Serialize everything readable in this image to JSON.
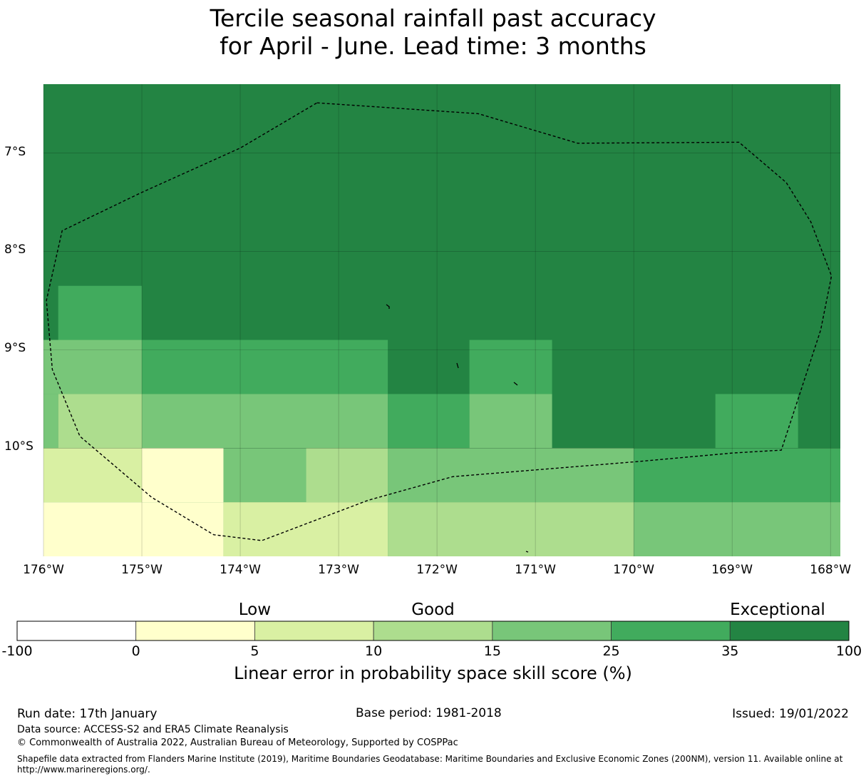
{
  "title": {
    "line1": "Tercile seasonal rainfall past accuracy",
    "line2": "for April - June. Lead time: 3 months"
  },
  "colors": {
    "c_neg": "#ffffff",
    "c_0_5": "#ffffcc",
    "c_5_10": "#d9f0a3",
    "c_10_15": "#addd8e",
    "c_15_25": "#78c679",
    "c_25_35": "#41ab5d",
    "c_35_100": "#238443"
  },
  "map": {
    "lon_range": [
      -176,
      -167.9
    ],
    "lat_range": [
      -6.3,
      -11.1
    ],
    "lon_ticks": [
      {
        "value": -176,
        "label": "176°W"
      },
      {
        "value": -175,
        "label": "175°W"
      },
      {
        "value": -174,
        "label": "174°W"
      },
      {
        "value": -173,
        "label": "173°W"
      },
      {
        "value": -172,
        "label": "172°W"
      },
      {
        "value": -171,
        "label": "171°W"
      },
      {
        "value": -170,
        "label": "170°W"
      },
      {
        "value": -169,
        "label": "169°W"
      },
      {
        "value": -168,
        "label": "168°W"
      }
    ],
    "lat_ticks": [
      {
        "value": -7,
        "label": "7°S"
      },
      {
        "value": -8,
        "label": "8°S"
      },
      {
        "value": -9,
        "label": "9°S"
      },
      {
        "value": -10,
        "label": "10°S"
      }
    ],
    "base_class": "c_35_100",
    "cells": [
      {
        "lon": [
          -175.85,
          -175.0
        ],
        "lat": [
          -8.35,
          -8.9
        ],
        "c": "c_25_35"
      },
      {
        "lon": [
          -176.0,
          -175.0
        ],
        "lat": [
          -8.9,
          -9.45
        ],
        "c": "c_15_25"
      },
      {
        "lon": [
          -175.0,
          -172.5
        ],
        "lat": [
          -8.9,
          -9.45
        ],
        "c": "c_25_35"
      },
      {
        "lon": [
          -171.67,
          -170.83
        ],
        "lat": [
          -8.9,
          -9.45
        ],
        "c": "c_25_35"
      },
      {
        "lon": [
          -176.0,
          -175.85
        ],
        "lat": [
          -9.45,
          -10.0
        ],
        "c": "c_15_25"
      },
      {
        "lon": [
          -175.85,
          -175.0
        ],
        "lat": [
          -9.45,
          -10.0
        ],
        "c": "c_10_15"
      },
      {
        "lon": [
          -175.0,
          -172.5
        ],
        "lat": [
          -9.45,
          -10.0
        ],
        "c": "c_15_25"
      },
      {
        "lon": [
          -172.5,
          -171.67
        ],
        "lat": [
          -9.45,
          -10.0
        ],
        "c": "c_25_35"
      },
      {
        "lon": [
          -171.67,
          -170.83
        ],
        "lat": [
          -9.45,
          -10.0
        ],
        "c": "c_15_25"
      },
      {
        "lon": [
          -169.17,
          -168.33
        ],
        "lat": [
          -9.45,
          -10.0
        ],
        "c": "c_25_35"
      },
      {
        "lon": [
          -176.0,
          -175.0
        ],
        "lat": [
          -10.0,
          -10.55
        ],
        "c": "c_5_10"
      },
      {
        "lon": [
          -175.0,
          -174.17
        ],
        "lat": [
          -10.0,
          -10.55
        ],
        "c": "c_0_5"
      },
      {
        "lon": [
          -174.17,
          -173.33
        ],
        "lat": [
          -10.0,
          -10.55
        ],
        "c": "c_15_25"
      },
      {
        "lon": [
          -173.33,
          -172.5
        ],
        "lat": [
          -10.0,
          -10.55
        ],
        "c": "c_10_15"
      },
      {
        "lon": [
          -172.5,
          -170.0
        ],
        "lat": [
          -10.0,
          -10.55
        ],
        "c": "c_15_25"
      },
      {
        "lon": [
          -170.0,
          -167.9
        ],
        "lat": [
          -10.0,
          -10.55
        ],
        "c": "c_25_35"
      },
      {
        "lon": [
          -176.0,
          -174.17
        ],
        "lat": [
          -10.55,
          -11.1
        ],
        "c": "c_0_5"
      },
      {
        "lon": [
          -174.17,
          -172.5
        ],
        "lat": [
          -10.55,
          -11.1
        ],
        "c": "c_5_10"
      },
      {
        "lon": [
          -172.5,
          -170.0
        ],
        "lat": [
          -10.55,
          -11.1
        ],
        "c": "c_10_15"
      },
      {
        "lon": [
          -170.0,
          -167.9
        ],
        "lat": [
          -10.55,
          -11.1
        ],
        "c": "c_15_25"
      }
    ],
    "eez_boundary": [
      [
        -173.22,
        -6.49
      ],
      [
        -171.58,
        -6.6
      ],
      [
        -170.57,
        -6.9
      ],
      [
        -168.93,
        -6.89
      ],
      [
        -168.45,
        -7.3
      ],
      [
        -168.2,
        -7.7
      ],
      [
        -167.99,
        -8.25
      ],
      [
        -168.1,
        -8.8
      ],
      [
        -168.5,
        -10.02
      ],
      [
        -169.0,
        -10.05
      ],
      [
        -170.0,
        -10.14
      ],
      [
        -171.84,
        -10.29
      ],
      [
        -172.7,
        -10.53
      ],
      [
        -173.78,
        -10.94
      ],
      [
        -174.27,
        -10.88
      ],
      [
        -174.9,
        -10.5
      ],
      [
        -175.63,
        -9.88
      ],
      [
        -175.91,
        -9.2
      ],
      [
        -175.97,
        -8.5
      ],
      [
        -175.81,
        -7.79
      ],
      [
        -175.0,
        -7.4
      ],
      [
        -174.0,
        -6.95
      ],
      [
        -173.22,
        -6.49
      ]
    ]
  },
  "colorbar": {
    "categories": [
      {
        "label": "Low",
        "at": 2
      },
      {
        "label": "Good",
        "at": 3.5
      },
      {
        "label": "Exceptional",
        "at": 6.4
      }
    ],
    "bounds": [
      "-100",
      "0",
      "5",
      "10",
      "15",
      "25",
      "35",
      "100"
    ],
    "segments": [
      "c_neg",
      "c_0_5",
      "c_5_10",
      "c_10_15",
      "c_15_25",
      "c_25_35",
      "c_35_100"
    ],
    "label": "Linear error in probability space skill score (%)"
  },
  "footer": {
    "run_date": "Run date: 17th January",
    "base_period": "Base period: 1981-2018",
    "issued": "Issued: 19/01/2022",
    "data_source": "Data source: ACCESS-S2 and ERA5 Climate Reanalysis",
    "copyright": "© Commonwealth of Australia 2022, Australian Bureau of Meteorology, Supported by COSPPac",
    "shapefile": "Shapefile data extracted from Flanders Marine Institute (2019), Maritime Boundaries Geodatabase: Maritime Boundaries and Exclusive Economic Zones (200NM), version 11. Available online at http://www.marineregions.org/."
  }
}
